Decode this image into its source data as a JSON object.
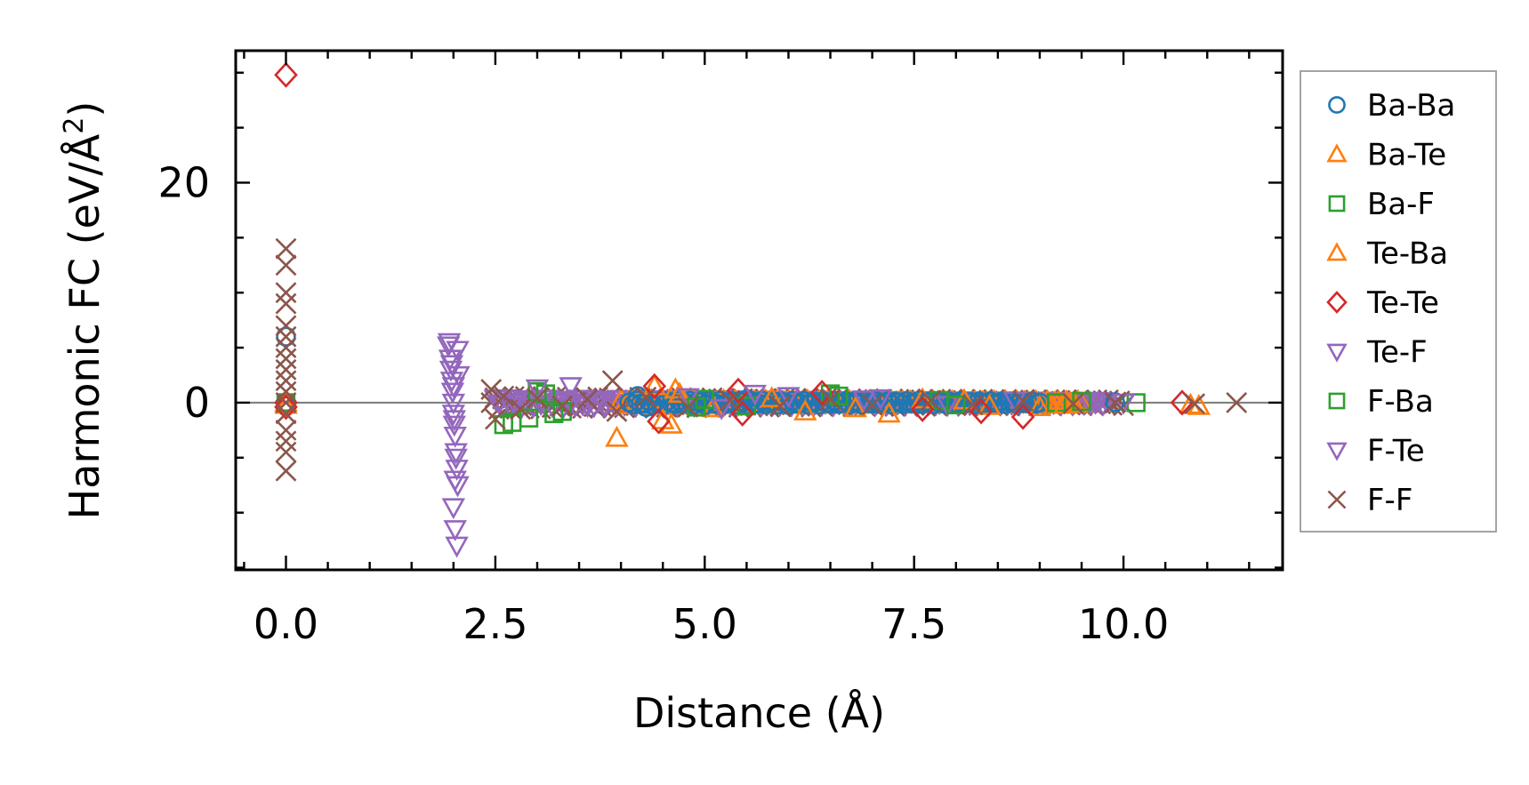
{
  "chart_data": {
    "type": "scatter",
    "title": "",
    "xlabel": "Distance (Å)",
    "ylabel_main": "Harmonic FC (eV/Å",
    "ylabel_sup": "2",
    "ylabel_close": ")",
    "xlim": [
      -0.6,
      11.9
    ],
    "ylim": [
      -15.2,
      32.0
    ],
    "xticks": [
      0.0,
      2.5,
      5.0,
      7.5,
      10.0
    ],
    "xtick_labels": [
      "0.0",
      "2.5",
      "5.0",
      "7.5",
      "10.0"
    ],
    "yticks": [
      0,
      20
    ],
    "ytick_labels": [
      "0",
      "20"
    ],
    "hline_y": 0,
    "legend_position": "outside-right",
    "series": [
      {
        "name": "Ba-Ba",
        "marker": "circle",
        "color": "#1f77b4",
        "points": [
          [
            0.0,
            0.0
          ],
          [
            0.0,
            6.0
          ],
          [
            0.0,
            -0.3
          ],
          [
            4.2,
            0.6
          ],
          [
            4.3,
            -0.4
          ],
          [
            5.5,
            0.3
          ],
          [
            6.0,
            -0.2
          ],
          [
            7.0,
            0.2
          ],
          [
            8.5,
            -0.1
          ],
          [
            9.9,
            0.05
          ]
        ]
      },
      {
        "name": "Ba-Te",
        "marker": "triangle-up",
        "color": "#ff7f0e",
        "points": [
          [
            0.0,
            0.0
          ],
          [
            3.95,
            -3.2
          ],
          [
            4.4,
            1.5
          ],
          [
            4.6,
            -2.0
          ],
          [
            4.7,
            0.8
          ],
          [
            5.1,
            -0.5
          ],
          [
            6.2,
            -0.8
          ],
          [
            7.2,
            -1.0
          ],
          [
            7.6,
            0.3
          ],
          [
            8.4,
            -0.3
          ],
          [
            9.0,
            -0.4
          ],
          [
            10.8,
            -0.2
          ]
        ]
      },
      {
        "name": "Ba-F",
        "marker": "square",
        "color": "#2ca02c",
        "points": [
          [
            0.0,
            0.0
          ],
          [
            2.6,
            -2.0
          ],
          [
            2.9,
            -1.4
          ],
          [
            3.2,
            -1.0
          ],
          [
            3.1,
            0.8
          ],
          [
            5.0,
            0.3
          ],
          [
            5.5,
            -0.3
          ],
          [
            6.5,
            0.8
          ],
          [
            7.8,
            0.2
          ],
          [
            9.2,
            0.0
          ],
          [
            10.15,
            0.0
          ]
        ]
      },
      {
        "name": "Te-Ba",
        "marker": "triangle-up",
        "color": "#ff7f0e",
        "points": [
          [
            0.0,
            -0.2
          ],
          [
            4.5,
            -1.6
          ],
          [
            4.65,
            1.2
          ],
          [
            5.8,
            0.4
          ],
          [
            6.8,
            -0.5
          ],
          [
            8.1,
            0.2
          ],
          [
            9.3,
            -0.2
          ],
          [
            10.9,
            -0.3
          ]
        ]
      },
      {
        "name": "Te-Te",
        "marker": "diamond",
        "color": "#d62728",
        "points": [
          [
            0.0,
            29.8
          ],
          [
            0.0,
            0.0
          ],
          [
            0.0,
            -0.4
          ],
          [
            4.4,
            1.5
          ],
          [
            4.45,
            -1.7
          ],
          [
            5.4,
            1.1
          ],
          [
            5.45,
            -1.0
          ],
          [
            6.4,
            0.9
          ],
          [
            7.6,
            -0.6
          ],
          [
            8.3,
            -0.8
          ],
          [
            8.8,
            -1.3
          ],
          [
            10.7,
            0.0
          ]
        ]
      },
      {
        "name": "Te-F",
        "marker": "triangle-down",
        "color": "#9467bd",
        "points": [
          [
            1.95,
            5.5
          ],
          [
            1.96,
            4.0
          ],
          [
            1.97,
            3.0
          ],
          [
            1.98,
            2.0
          ],
          [
            1.99,
            1.0
          ],
          [
            2.0,
            0.0
          ],
          [
            2.0,
            -1.0
          ],
          [
            2.01,
            -2.0
          ],
          [
            2.02,
            -3.0
          ],
          [
            2.03,
            -4.5
          ],
          [
            2.04,
            -6.0
          ],
          [
            2.02,
            -7.0
          ],
          [
            2.0,
            -9.5
          ],
          [
            2.02,
            -11.5
          ],
          [
            2.04,
            -13.0
          ],
          [
            2.05,
            4.8
          ],
          [
            2.06,
            2.5
          ],
          [
            3.4,
            1.5
          ],
          [
            3.6,
            -0.3
          ],
          [
            4.8,
            0.5
          ],
          [
            5.2,
            -0.5
          ],
          [
            6.0,
            0.6
          ],
          [
            6.9,
            0.3
          ],
          [
            7.9,
            -0.2
          ],
          [
            9.6,
            0.0
          ]
        ]
      },
      {
        "name": "F-Ba",
        "marker": "square",
        "color": "#2ca02c",
        "points": [
          [
            2.7,
            -1.8
          ],
          [
            3.0,
            1.0
          ],
          [
            3.3,
            -0.8
          ],
          [
            4.9,
            -0.4
          ],
          [
            6.6,
            0.6
          ],
          [
            8.0,
            -0.2
          ],
          [
            9.5,
            0.1
          ]
        ]
      },
      {
        "name": "F-Te",
        "marker": "triangle-down",
        "color": "#9467bd",
        "points": [
          [
            1.94,
            5.2
          ],
          [
            1.98,
            3.5
          ],
          [
            2.0,
            1.5
          ],
          [
            2.01,
            -1.5
          ],
          [
            2.03,
            -5.0
          ],
          [
            2.05,
            -7.5
          ],
          [
            3.0,
            1.3
          ],
          [
            3.8,
            -0.3
          ],
          [
            5.6,
            0.8
          ],
          [
            7.1,
            0.4
          ],
          [
            8.7,
            0.2
          ],
          [
            10.0,
            0.0
          ]
        ]
      },
      {
        "name": "F-F",
        "marker": "x",
        "color": "#8c564b",
        "points": [
          [
            0.0,
            14.0
          ],
          [
            0.0,
            12.5
          ],
          [
            0.0,
            10.0
          ],
          [
            0.0,
            9.0
          ],
          [
            0.0,
            7.0
          ],
          [
            0.0,
            6.0
          ],
          [
            0.0,
            5.0
          ],
          [
            0.0,
            4.0
          ],
          [
            0.0,
            3.0
          ],
          [
            0.0,
            2.0
          ],
          [
            0.0,
            1.0
          ],
          [
            0.0,
            0.0
          ],
          [
            0.0,
            -1.0
          ],
          [
            0.0,
            -2.5
          ],
          [
            0.0,
            -3.5
          ],
          [
            0.0,
            -4.5
          ],
          [
            0.0,
            -6.2
          ],
          [
            2.45,
            1.2
          ],
          [
            2.5,
            -1.5
          ],
          [
            2.6,
            0.6
          ],
          [
            2.8,
            -0.6
          ],
          [
            3.0,
            0.4
          ],
          [
            3.3,
            -0.3
          ],
          [
            3.6,
            0.3
          ],
          [
            3.9,
            2.0
          ],
          [
            3.95,
            -0.8
          ],
          [
            4.3,
            0.5
          ],
          [
            4.8,
            -0.4
          ],
          [
            5.3,
            0.2
          ],
          [
            5.9,
            -0.3
          ],
          [
            6.5,
            0.3
          ],
          [
            7.0,
            -0.2
          ],
          [
            7.7,
            0.2
          ],
          [
            8.2,
            -0.2
          ],
          [
            8.8,
            0.15
          ],
          [
            9.4,
            -0.1
          ],
          [
            9.9,
            0.0
          ],
          [
            10.85,
            -0.1
          ],
          [
            11.35,
            0.0
          ]
        ]
      }
    ],
    "dense_bands": [
      {
        "series_index": 8,
        "x_range": [
          2.45,
          10.0
        ],
        "y_amp": 0.6
      },
      {
        "series_index": 5,
        "x_range": [
          2.5,
          9.8
        ],
        "y_amp": 0.4
      },
      {
        "series_index": 1,
        "x_range": [
          4.0,
          9.5
        ],
        "y_amp": 0.3
      },
      {
        "series_index": 0,
        "x_range": [
          4.1,
          9.0
        ],
        "y_amp": 0.25
      }
    ]
  }
}
